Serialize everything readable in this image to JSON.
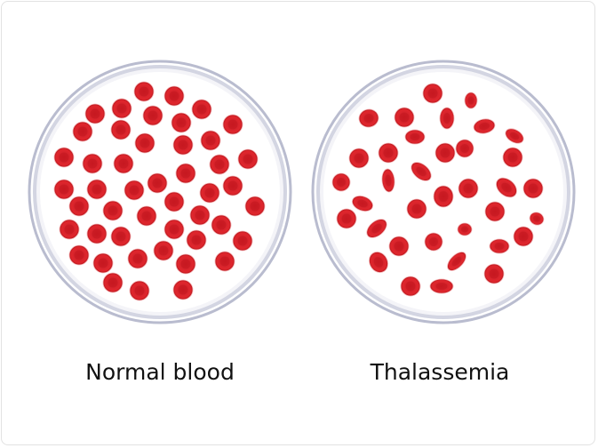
{
  "labels": {
    "left": "Normal blood",
    "right": "Thalassemia"
  },
  "colors": {
    "cell": "#d8232a",
    "cell_dark": "#b5161c",
    "dish_rim": "#b9bccf",
    "dish_fill": "#f4f4f8"
  },
  "dishes": [
    {
      "name": "normal-blood-dish",
      "cell_shape": "uniform round"
    },
    {
      "name": "thalassemia-dish",
      "cell_shape": "irregular"
    }
  ]
}
